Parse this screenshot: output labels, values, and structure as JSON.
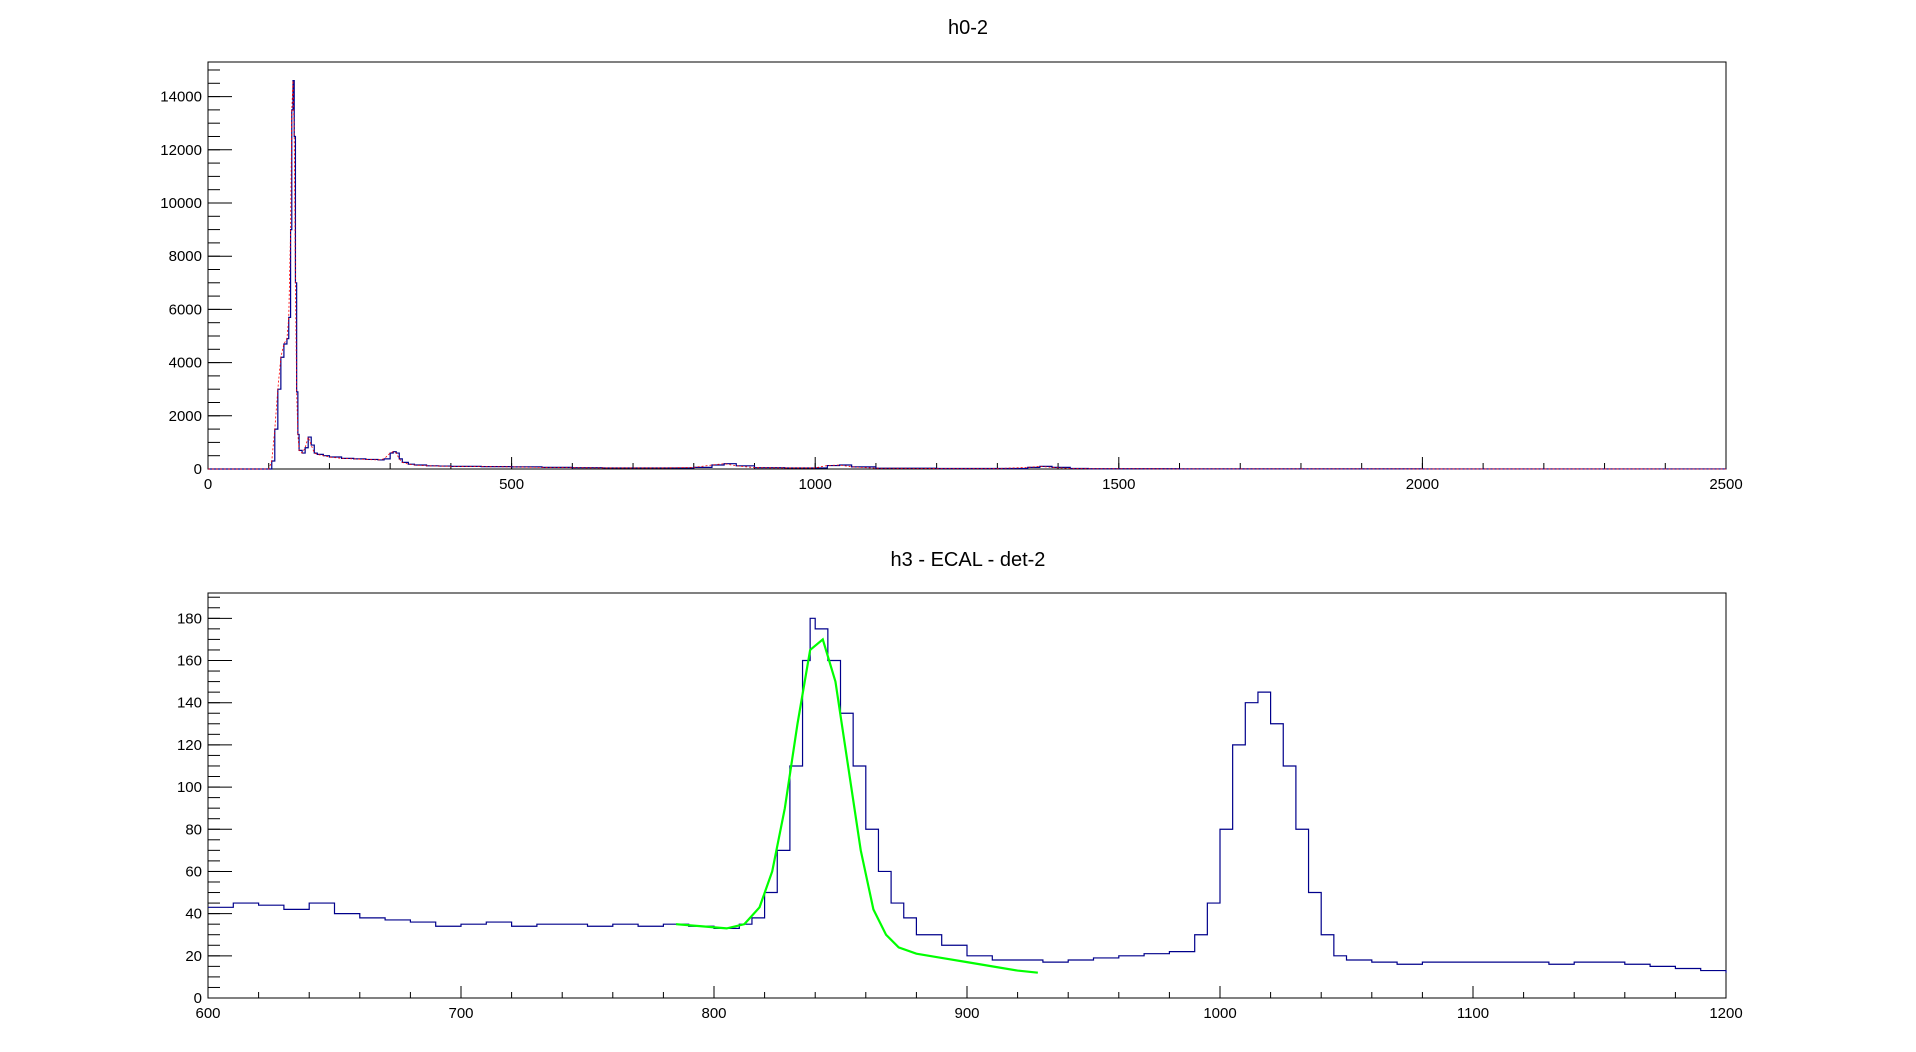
{
  "chart_data": [
    {
      "type": "histogram",
      "title": "h0-2",
      "xlim": [
        0,
        2500
      ],
      "ylim": [
        0,
        15300
      ],
      "x_ticks": [
        0,
        500,
        1000,
        1500,
        2000,
        2500
      ],
      "y_ticks": [
        0,
        2000,
        4000,
        6000,
        8000,
        10000,
        12000,
        14000
      ],
      "grid": false,
      "colors": {
        "histogram": "#00008b",
        "overlay": "#ff0000"
      },
      "series": [
        {
          "x": [
            0,
            80,
            90,
            100,
            105,
            110,
            115,
            120,
            125,
            130,
            133,
            136,
            138,
            140,
            142,
            144,
            146,
            148,
            150,
            155,
            160,
            165,
            170,
            175,
            180,
            190,
            200,
            220,
            240,
            260,
            280,
            290,
            300,
            305,
            310,
            315,
            320,
            330,
            340,
            360,
            380,
            400,
            450,
            500,
            550,
            600,
            650,
            700,
            750,
            800,
            830,
            850,
            870,
            900,
            950,
            1000,
            1020,
            1040,
            1060,
            1100,
            1200,
            1300,
            1350,
            1370,
            1390,
            1420,
            1450,
            1500,
            1600,
            1800,
            2000,
            2200,
            2500
          ],
          "values": [
            0,
            0,
            0,
            0,
            300,
            1500,
            3000,
            4200,
            4700,
            4900,
            5700,
            9000,
            13500,
            14600,
            12500,
            7000,
            2900,
            1300,
            700,
            600,
            800,
            1200,
            900,
            600,
            550,
            500,
            450,
            400,
            380,
            360,
            340,
            380,
            600,
            650,
            600,
            380,
            250,
            180,
            150,
            120,
            110,
            100,
            90,
            80,
            60,
            50,
            40,
            40,
            40,
            60,
            150,
            200,
            120,
            50,
            40,
            40,
            130,
            150,
            80,
            30,
            20,
            20,
            60,
            100,
            60,
            20,
            10,
            10,
            5,
            5,
            3,
            2,
            1
          ]
        }
      ]
    },
    {
      "type": "histogram",
      "title": "h3 - ECAL - det-2",
      "xlim": [
        600,
        1200
      ],
      "ylim": [
        0,
        192
      ],
      "x_ticks": [
        600,
        700,
        800,
        900,
        1000,
        1100,
        1200
      ],
      "y_ticks": [
        0,
        20,
        40,
        60,
        80,
        100,
        120,
        140,
        160,
        180
      ],
      "grid": false,
      "colors": {
        "histogram": "#00008b",
        "fit": "#00ff00"
      },
      "series": [
        {
          "x": [
            600,
            610,
            620,
            630,
            640,
            650,
            660,
            670,
            680,
            690,
            700,
            710,
            720,
            730,
            740,
            750,
            760,
            770,
            780,
            790,
            800,
            805,
            810,
            815,
            820,
            825,
            830,
            835,
            838,
            840,
            845,
            850,
            855,
            860,
            865,
            870,
            875,
            880,
            890,
            900,
            910,
            920,
            930,
            940,
            950,
            960,
            970,
            980,
            990,
            995,
            1000,
            1005,
            1010,
            1015,
            1020,
            1025,
            1030,
            1035,
            1040,
            1045,
            1050,
            1060,
            1070,
            1080,
            1090,
            1100,
            1110,
            1120,
            1130,
            1140,
            1150,
            1160,
            1170,
            1180,
            1190,
            1200
          ],
          "values": [
            43,
            45,
            44,
            42,
            45,
            40,
            38,
            37,
            36,
            34,
            35,
            36,
            34,
            35,
            35,
            34,
            35,
            34,
            35,
            34,
            33,
            33,
            35,
            38,
            50,
            70,
            110,
            160,
            180,
            175,
            160,
            135,
            110,
            80,
            60,
            45,
            38,
            30,
            25,
            20,
            18,
            18,
            17,
            18,
            19,
            20,
            21,
            22,
            30,
            45,
            80,
            120,
            140,
            145,
            130,
            110,
            80,
            50,
            30,
            20,
            18,
            17,
            16,
            17,
            17,
            17,
            17,
            17,
            16,
            17,
            17,
            16,
            15,
            14,
            13,
            12
          ]
        },
        {
          "name": "fit",
          "x": [
            785,
            795,
            805,
            812,
            818,
            823,
            828,
            833,
            838,
            843,
            848,
            853,
            858,
            863,
            868,
            873,
            880,
            890,
            900,
            910,
            920,
            928
          ],
          "values": [
            35,
            34,
            33,
            35,
            43,
            60,
            90,
            130,
            165,
            170,
            150,
            110,
            70,
            42,
            30,
            24,
            21,
            19,
            17,
            15,
            13,
            12
          ]
        }
      ]
    }
  ]
}
